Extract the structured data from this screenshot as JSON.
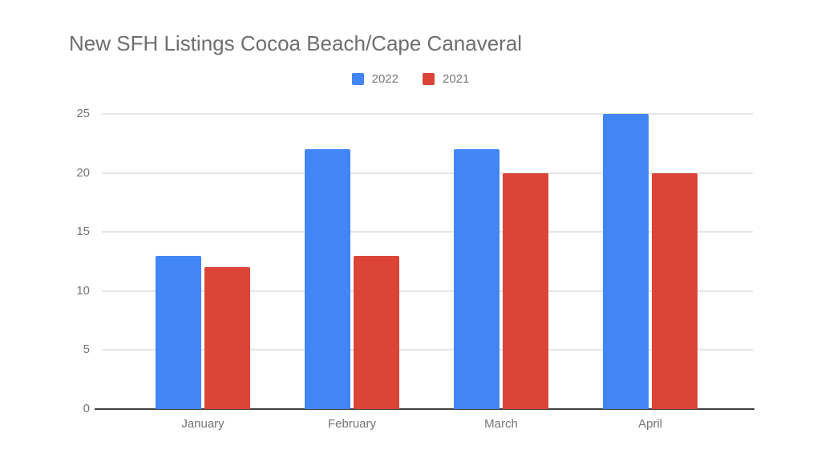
{
  "chart_data": {
    "type": "bar",
    "title": "New SFH Listings Cocoa Beach/Cape Canaveral",
    "categories": [
      "January",
      "February",
      "March",
      "April"
    ],
    "series": [
      {
        "name": "2022",
        "color": "#4285F4",
        "values": [
          13,
          22,
          22,
          25
        ]
      },
      {
        "name": "2021",
        "color": "#DB4437",
        "values": [
          12,
          13,
          20,
          20
        ]
      }
    ],
    "ylim": [
      0,
      25
    ],
    "yticks": [
      0,
      5,
      10,
      15,
      20,
      25
    ],
    "grid": true,
    "legend_position": "top",
    "xlabel": "",
    "ylabel": ""
  },
  "colors": {
    "background": "#ffffff",
    "title_text": "#6e6e6e",
    "axis_text": "#757575",
    "gridline": "#e6e6e6",
    "baseline": "#424242",
    "series_2022": "#4285F4",
    "series_2021": "#DB4437"
  }
}
